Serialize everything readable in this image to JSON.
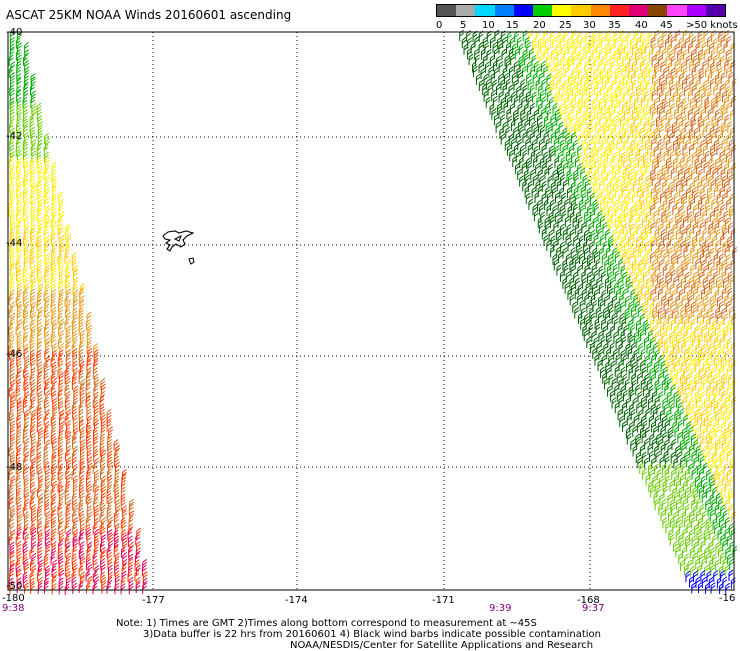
{
  "title": "ASCAT 25KM NOAA Winds 20160601 ascending",
  "legend": {
    "labels": [
      "0",
      "5",
      "10",
      "15",
      "20",
      "25",
      "30",
      "35",
      "40",
      "45",
      ">50 knots"
    ],
    "colors": [
      "#555555",
      "#aaaaaa",
      "#00d8ff",
      "#0080ff",
      "#0000ff",
      "#00cc00",
      "#ffff00",
      "#ffcc00",
      "#ff8800",
      "#ff2222",
      "#dd0077",
      "#884400",
      "#ff44ff",
      "#aa00ff",
      "#5500aa"
    ]
  },
  "map": {
    "lon_labels": [
      "-180",
      "-177",
      "-174",
      "-171",
      "-168",
      "-16"
    ],
    "lat_labels": [
      "-40",
      "-42",
      "-44",
      "-46",
      "-48",
      "-50"
    ],
    "time_labels": [
      "9:38",
      "9:39",
      "9:37"
    ],
    "swath_colors": {
      "dark_green": "#006400",
      "green": "#00aa00",
      "light_green": "#66cc00",
      "yellow": "#ffee00",
      "gold": "#ffcc00",
      "orange": "#e69a1a",
      "dark_orange": "#d2691e",
      "red": "#ff3b00",
      "crimson": "#e0004f"
    }
  },
  "notes": {
    "line1": "Note: 1) Times are GMT 2)Times along bottom correspond to measurement at ~45S",
    "line2": "3)Data buffer is 22 hrs from 20160601 4) Black wind barbs indicate possible contamination",
    "line3": "NOAA/NESDIS/Center for Satellite Applications and Research"
  }
}
